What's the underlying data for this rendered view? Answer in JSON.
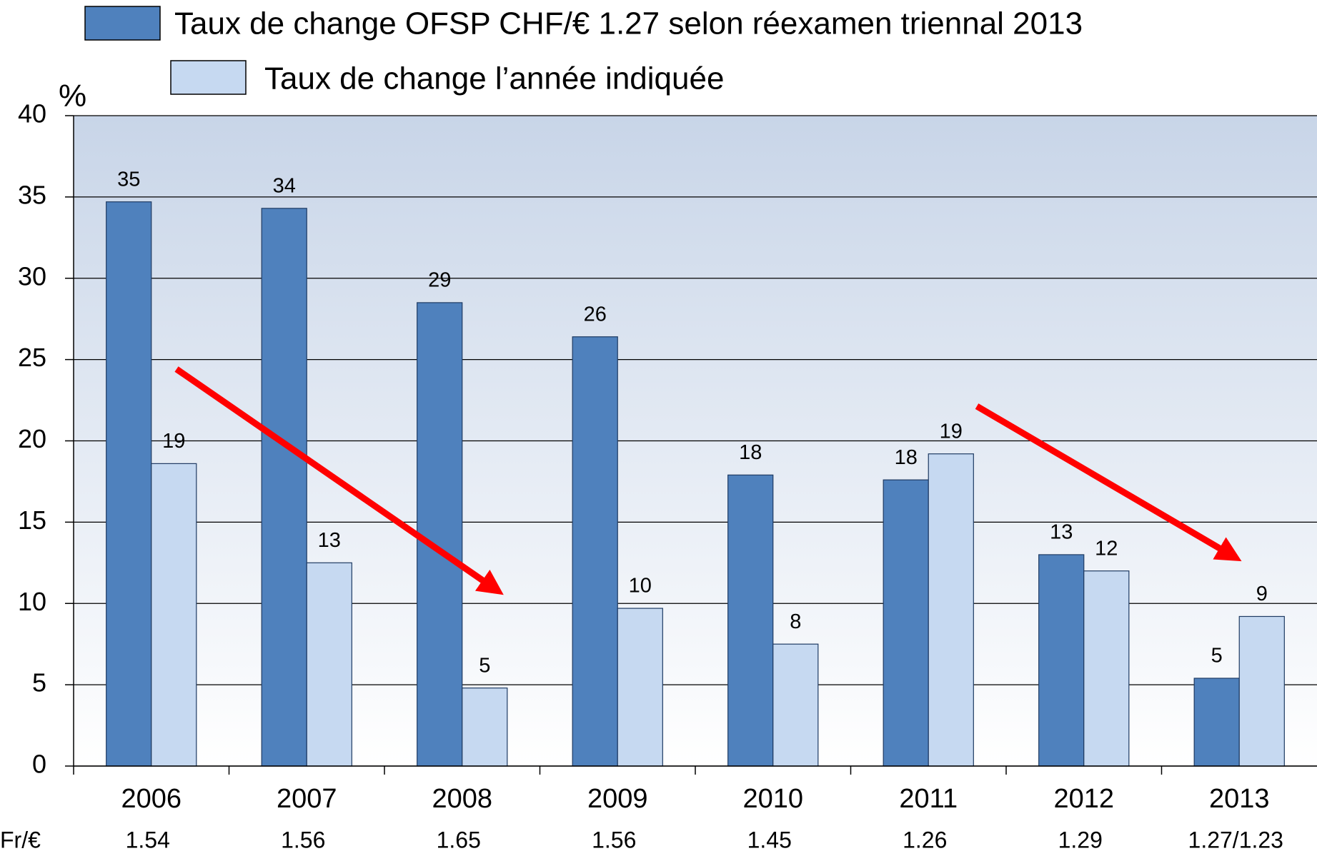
{
  "chart_data": {
    "type": "bar",
    "y_label": "%",
    "categories": [
      "2006",
      "2007",
      "2008",
      "2009",
      "2010",
      "2011",
      "2012",
      "2013"
    ],
    "series": [
      {
        "name": "Taux de change OFSP CHF/€ 1.27 selon réexamen triennal 2013",
        "color": "#4f81bd",
        "values": [
          34.7,
          34.3,
          28.5,
          26.4,
          17.9,
          17.6,
          13.0,
          5.4
        ],
        "value_labels": [
          "35",
          "34",
          "29",
          "26",
          "18",
          "18",
          "13",
          "5"
        ]
      },
      {
        "name": "Taux de change l’année indiquée",
        "color": "#c6d9f1",
        "values": [
          18.6,
          12.5,
          4.8,
          9.7,
          7.5,
          19.2,
          12.0,
          9.2
        ],
        "value_labels": [
          "19",
          "13",
          "5",
          "10",
          "8",
          "19",
          "12",
          "9"
        ]
      }
    ],
    "rate_label": "Fr/€",
    "rates": [
      "1.54",
      "1.56",
      "1.65",
      "1.56",
      "1.45",
      "1.26",
      "1.29",
      "1.27/1.23"
    ],
    "ylim": [
      0,
      40
    ],
    "yticks": [
      0,
      5,
      10,
      15,
      20,
      25,
      30,
      35,
      40
    ],
    "grid": true
  }
}
